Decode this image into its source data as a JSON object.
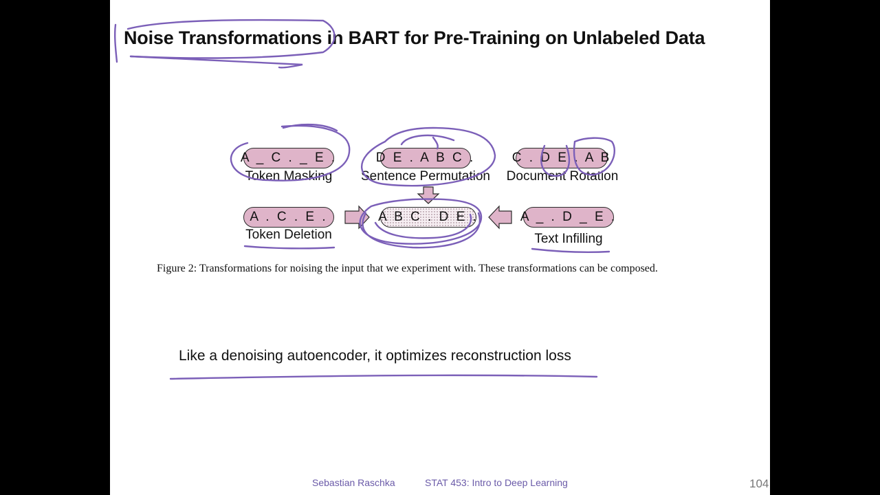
{
  "slide": {
    "title": "Noise Transformations in BART for Pre-Training on Unlabeled Data",
    "figure": {
      "pills": {
        "token_masking": "A _ C . _ E .",
        "sentence_permutation": "D E . A B C .",
        "document_rotation": "C . D E . A B",
        "token_deletion": "A . C . E .",
        "original": "A B C . D E .",
        "text_infilling": "A _ . D _ E ."
      },
      "labels": {
        "token_masking": "Token Masking",
        "sentence_permutation": "Sentence Permutation",
        "document_rotation": "Document Rotation",
        "token_deletion": "Token Deletion",
        "text_infilling": "Text Infilling"
      },
      "caption": "Figure 2: Transformations for noising the input that we experiment with. These transformations can be composed."
    },
    "statement": "Like a denoising autoencoder, it optimizes reconstruction loss",
    "footer": {
      "author": "Sebastian Raschka",
      "course": "STAT 453: Intro to Deep Learning",
      "page": "104"
    },
    "colors": {
      "pill_fill": "#dfb4c9",
      "annotation_ink": "#7b5fb8",
      "arrow_fill": "#dfb4c9"
    }
  }
}
